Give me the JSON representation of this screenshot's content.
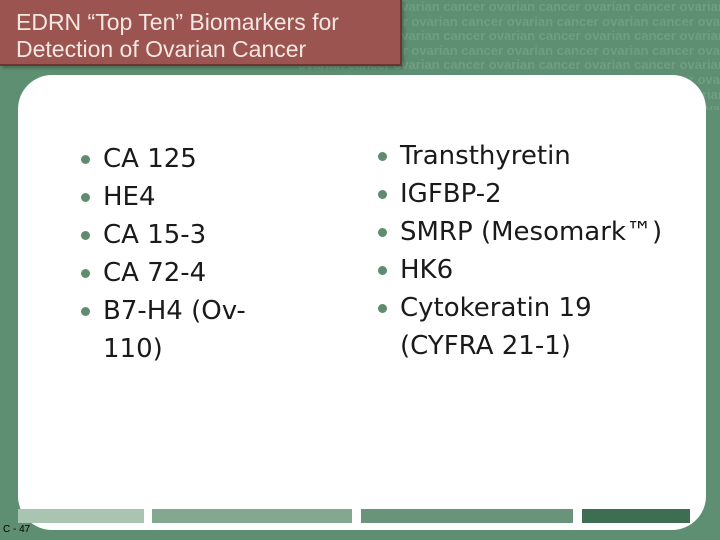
{
  "title": "EDRN “Top Ten” Biomarkers for\nDetection of Ovarian Cancer",
  "watermark_text": "ovarian cancer ovarian cancer ovarian cancer ovarian cancer ovarian cancer",
  "left_list": [
    "CA 125",
    "HE4",
    "CA 15-3",
    "CA 72-4",
    "B7-H4 (Ov-110)"
  ],
  "right_list": [
    "Transthyretin",
    "IGFBP-2",
    "SMRP (Mesomark™)",
    "HK6",
    "Cytokeratin 19 (CYFRA 21-1)"
  ],
  "slide_number": "C - 47",
  "colors": {
    "background": "#5e8f72",
    "title_box": "#9b5450",
    "title_text": "#f3e7e2",
    "panel": "#ffffff",
    "bullet": "#5f8c6f"
  }
}
